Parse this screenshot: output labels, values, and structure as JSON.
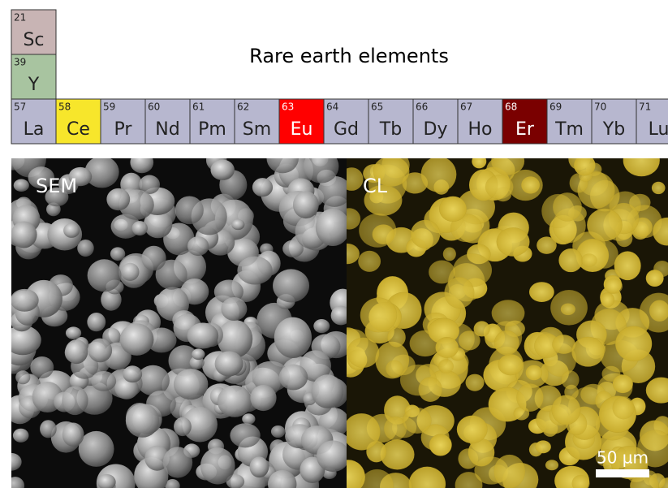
{
  "title": "Rare earth elements",
  "group3": [
    {
      "number": 21,
      "symbol": "Sc",
      "color": "#c8b4b4"
    },
    {
      "number": 39,
      "symbol": "Y",
      "color": "#a8c4a0"
    }
  ],
  "lanthanides": [
    {
      "number": 57,
      "symbol": "La",
      "color": "#b7b7cf"
    },
    {
      "number": 58,
      "symbol": "Ce",
      "color": "#f7e62b"
    },
    {
      "number": 59,
      "symbol": "Pr",
      "color": "#b7b7cf"
    },
    {
      "number": 60,
      "symbol": "Nd",
      "color": "#b7b7cf"
    },
    {
      "number": 61,
      "symbol": "Pm",
      "color": "#b7b7cf"
    },
    {
      "number": 62,
      "symbol": "Sm",
      "color": "#b7b7cf"
    },
    {
      "number": 63,
      "symbol": "Eu",
      "color": "#ff0000"
    },
    {
      "number": 64,
      "symbol": "Gd",
      "color": "#b7b7cf"
    },
    {
      "number": 65,
      "symbol": "Tb",
      "color": "#b7b7cf"
    },
    {
      "number": 66,
      "symbol": "Dy",
      "color": "#b7b7cf"
    },
    {
      "number": 67,
      "symbol": "Ho",
      "color": "#b7b7cf"
    },
    {
      "number": 68,
      "symbol": "Er",
      "color": "#7a0000"
    },
    {
      "number": 69,
      "symbol": "Tm",
      "color": "#b7b7cf"
    },
    {
      "number": 70,
      "symbol": "Yb",
      "color": "#b7b7cf"
    },
    {
      "number": 71,
      "symbol": "Lu",
      "color": "#b7b7cf"
    }
  ],
  "panels": {
    "left": "SEM",
    "right": "CL",
    "scale_bar": "50 µm"
  }
}
